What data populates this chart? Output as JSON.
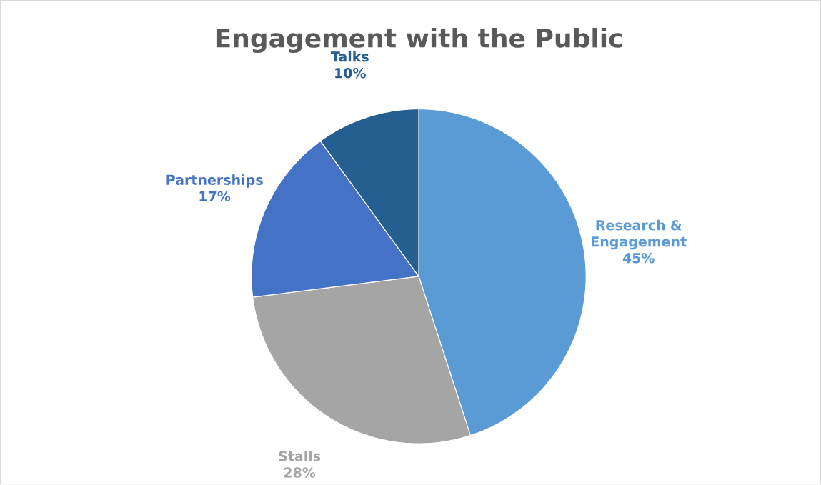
{
  "chart_data": {
    "type": "pie",
    "title": "Engagement with the Public",
    "categories": [
      "Research & Engagement",
      "Stalls",
      "Partnerships",
      "Talks"
    ],
    "values": [
      45,
      28,
      17,
      10
    ],
    "colors": [
      "#5b9bd5",
      "#a5a5a5",
      "#4472c4",
      "#255e91"
    ],
    "value_labels": [
      "45%",
      "28%",
      "17%",
      "10%"
    ]
  }
}
